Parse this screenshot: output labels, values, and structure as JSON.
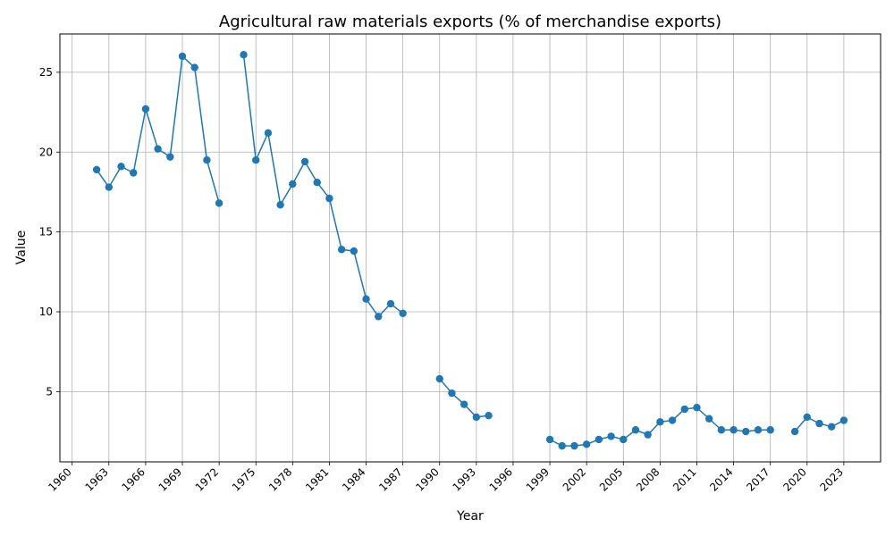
{
  "chart_data": {
    "type": "line",
    "title": "Agricultural raw materials exports (% of merchandise exports)",
    "xlabel": "Year",
    "ylabel": "Value",
    "grid": true,
    "xlim": [
      1959,
      2026
    ],
    "ylim": [
      0.6,
      27.4
    ],
    "xticks": [
      "1960",
      "1963",
      "1966",
      "1969",
      "1972",
      "1975",
      "1978",
      "1981",
      "1984",
      "1987",
      "1990",
      "1993",
      "1996",
      "1999",
      "2002",
      "2005",
      "2008",
      "2011",
      "2014",
      "2017",
      "2020",
      "2023"
    ],
    "yticks": [
      "5",
      "10",
      "15",
      "20",
      "25"
    ],
    "color": "#1f77b4",
    "series": [
      {
        "x": [
          1962,
          1963,
          1964,
          1965,
          1966,
          1967,
          1968,
          1969,
          1970,
          1971,
          1972,
          1973,
          1974,
          1975,
          1976,
          1977,
          1978,
          1979,
          1980,
          1981,
          1982,
          1983,
          1984,
          1985,
          1986,
          1987,
          1988,
          1989,
          1990,
          1991,
          1992,
          1993,
          1994,
          1995,
          1996,
          1997,
          1998,
          1999,
          2000,
          2001,
          2002,
          2003,
          2004,
          2005,
          2006,
          2007,
          2008,
          2009,
          2010,
          2011,
          2012,
          2013,
          2014,
          2015,
          2016,
          2017,
          2018,
          2019,
          2020,
          2021,
          2022,
          2023
        ],
        "values": [
          18.9,
          17.8,
          19.1,
          18.7,
          22.7,
          20.2,
          19.7,
          26.0,
          25.3,
          19.5,
          16.8,
          null,
          26.1,
          19.5,
          21.2,
          16.7,
          18.0,
          19.4,
          18.1,
          17.1,
          13.9,
          13.8,
          10.8,
          9.7,
          10.5,
          9.9,
          null,
          null,
          5.8,
          4.9,
          4.2,
          3.4,
          3.5,
          null,
          null,
          null,
          null,
          2.0,
          1.6,
          1.6,
          1.7,
          2.0,
          2.2,
          2.0,
          2.6,
          2.3,
          3.1,
          3.2,
          3.9,
          4.0,
          3.3,
          2.6,
          2.6,
          2.5,
          2.6,
          2.6,
          null,
          2.5,
          3.4,
          3.0,
          2.8,
          3.2
        ]
      }
    ]
  }
}
